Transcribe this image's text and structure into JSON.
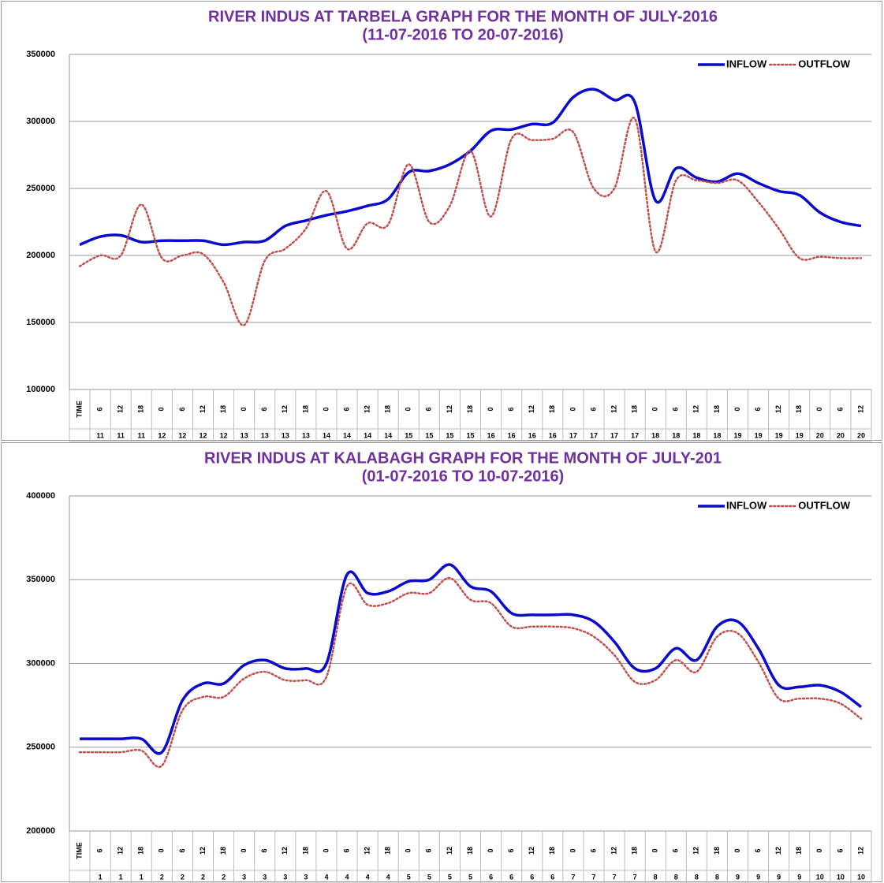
{
  "chart_data": [
    {
      "type": "line",
      "title": "RIVER INDUS AT TARBELA GRAPH FOR THE MONTH OF JULY-2016",
      "subtitle": "(11-07-2016 TO 20-07-2016)",
      "categories": [
        "TIME",
        6,
        12,
        18,
        0,
        6,
        12,
        18,
        0,
        6,
        12,
        18,
        0,
        6,
        12,
        18,
        0,
        6,
        12,
        18,
        0,
        6,
        12,
        18,
        0,
        6,
        12,
        18,
        0,
        6,
        12,
        18,
        0,
        6,
        12,
        18,
        0,
        6,
        12
      ],
      "category_groups": [
        null,
        11,
        11,
        11,
        12,
        12,
        12,
        12,
        13,
        13,
        13,
        13,
        14,
        14,
        14,
        14,
        15,
        15,
        15,
        15,
        16,
        16,
        16,
        16,
        17,
        17,
        17,
        17,
        18,
        18,
        18,
        18,
        19,
        19,
        19,
        19,
        20,
        20,
        20
      ],
      "series": [
        {
          "name": "INFLOW",
          "color": "#0a0acc",
          "style": "solid",
          "values": [
            208000,
            214000,
            215000,
            210000,
            211000,
            211000,
            211000,
            208000,
            210000,
            211000,
            222000,
            226000,
            230000,
            233000,
            237000,
            242000,
            262000,
            263000,
            268000,
            278000,
            293000,
            294000,
            298000,
            299000,
            318000,
            324000,
            316000,
            314000,
            241000,
            265000,
            258000,
            255000,
            261000,
            254000,
            248000,
            245000,
            232000,
            225000,
            222000
          ]
        },
        {
          "name": "OUTFLOW",
          "color": "#c0504d",
          "style": "dotted",
          "values": [
            192000,
            200000,
            200000,
            238000,
            198000,
            200000,
            201000,
            180000,
            148000,
            196000,
            205000,
            220000,
            248000,
            205000,
            224000,
            223000,
            268000,
            225000,
            237000,
            278000,
            229000,
            287000,
            286000,
            287000,
            292000,
            250000,
            250000,
            302000,
            203000,
            256000,
            256000,
            254000,
            256000,
            240000,
            220000,
            198000,
            199000,
            198000,
            198000
          ]
        }
      ],
      "ylim": [
        100000,
        350000
      ],
      "yticks": [
        100000,
        150000,
        200000,
        250000,
        300000,
        350000
      ],
      "grid": true,
      "legend": "top-right"
    },
    {
      "type": "line",
      "title": "RIVER INDUS AT KALABAGH GRAPH FOR THE MONTH OF JULY-201",
      "subtitle": "(01-07-2016 TO 10-07-2016)",
      "categories": [
        "TIME",
        6,
        12,
        18,
        0,
        6,
        12,
        18,
        0,
        6,
        12,
        18,
        0,
        6,
        12,
        18,
        0,
        6,
        12,
        18,
        0,
        6,
        12,
        18,
        0,
        6,
        12,
        18,
        0,
        6,
        12,
        18,
        0,
        6,
        12,
        18,
        0,
        6,
        12
      ],
      "category_groups": [
        null,
        1,
        1,
        1,
        2,
        2,
        2,
        2,
        3,
        3,
        3,
        3,
        4,
        4,
        4,
        4,
        5,
        5,
        5,
        5,
        6,
        6,
        6,
        6,
        7,
        7,
        7,
        7,
        8,
        8,
        8,
        8,
        9,
        9,
        9,
        9,
        10,
        10,
        10
      ],
      "series": [
        {
          "name": "INFLOW",
          "color": "#0a0acc",
          "style": "solid",
          "values": [
            255000,
            255000,
            255000,
            255000,
            247000,
            278000,
            288000,
            288000,
            299000,
            302000,
            297000,
            297000,
            300000,
            353000,
            342000,
            343000,
            349000,
            350000,
            359000,
            346000,
            343000,
            330000,
            329000,
            329000,
            329000,
            325000,
            313000,
            297000,
            297000,
            309000,
            302000,
            322000,
            325000,
            309000,
            287000,
            286000,
            287000,
            283000,
            274000
          ]
        },
        {
          "name": "OUTFLOW",
          "color": "#c0504d",
          "style": "dotted",
          "values": [
            247000,
            247000,
            247000,
            248000,
            239000,
            272000,
            280000,
            280000,
            291000,
            295000,
            290000,
            290000,
            292000,
            346000,
            335000,
            336000,
            342000,
            342000,
            351000,
            338000,
            336000,
            322000,
            322000,
            322000,
            321000,
            316000,
            305000,
            289000,
            290000,
            302000,
            295000,
            316000,
            318000,
            301000,
            279000,
            279000,
            279000,
            276000,
            267000
          ]
        }
      ],
      "ylim": [
        200000,
        400000
      ],
      "yticks": [
        200000,
        250000,
        300000,
        350000,
        400000
      ],
      "grid": true,
      "legend": "top-right"
    }
  ]
}
